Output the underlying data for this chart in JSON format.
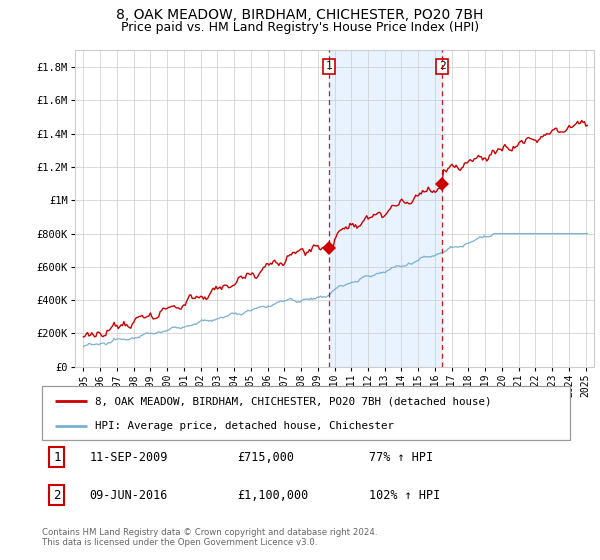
{
  "title": "8, OAK MEADOW, BIRDHAM, CHICHESTER, PO20 7BH",
  "subtitle": "Price paid vs. HM Land Registry's House Price Index (HPI)",
  "ylabel_ticks": [
    "£0",
    "£200K",
    "£400K",
    "£600K",
    "£800K",
    "£1M",
    "£1.2M",
    "£1.4M",
    "£1.6M",
    "£1.8M"
  ],
  "ytick_values": [
    0,
    200000,
    400000,
    600000,
    800000,
    1000000,
    1200000,
    1400000,
    1600000,
    1800000
  ],
  "ylim": [
    0,
    1900000
  ],
  "xlim_start": 1994.5,
  "xlim_end": 2025.5,
  "red_line_color": "#cc0000",
  "blue_line_color": "#7bafd4",
  "blue_fill_color": "#ddeeff",
  "grid_color": "#cccccc",
  "bg_color": "#ffffff",
  "vline1_x": 2009.69,
  "vline2_x": 2016.44,
  "marker1_x": 2009.69,
  "marker1_y": 715000,
  "marker2_x": 2016.44,
  "marker2_y": 1100000,
  "legend_line1": "8, OAK MEADOW, BIRDHAM, CHICHESTER, PO20 7BH (detached house)",
  "legend_line2": "HPI: Average price, detached house, Chichester",
  "ann1_date": "11-SEP-2009",
  "ann1_price": "£715,000",
  "ann1_hpi": "77% ↑ HPI",
  "ann2_date": "09-JUN-2016",
  "ann2_price": "£1,100,000",
  "ann2_hpi": "102% ↑ HPI",
  "footer": "Contains HM Land Registry data © Crown copyright and database right 2024.\nThis data is licensed under the Open Government Licence v3.0.",
  "title_fontsize": 10,
  "subtitle_fontsize": 9
}
